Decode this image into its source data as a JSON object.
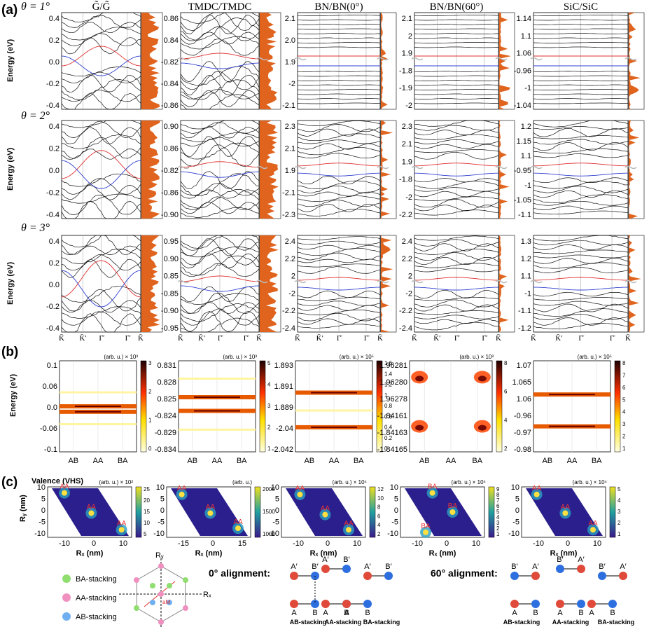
{
  "panel_labels": {
    "a": "(a)",
    "b": "(b)",
    "c": "(c)"
  },
  "columns": [
    "G̃/G̃",
    "TMDC/TMDC",
    "BN/BN(0°)",
    "BN/BN(60°)",
    "SiC/SiC"
  ],
  "thetas": [
    "θ = 1°",
    "θ = 2°",
    "θ = 3°"
  ],
  "energy_label": "Energy (eV)",
  "kpath": [
    "K̄",
    "K̄′",
    "Γ̄",
    "Γ̄",
    "K̄"
  ],
  "row_ticks": [
    [
      [
        "0.4",
        "0.2",
        "0.0",
        "-0.2",
        "-0.4"
      ],
      [
        "0.86",
        "0.84",
        "-0.82",
        "-0.84",
        "-0.86"
      ],
      [
        "2.1",
        "2.0",
        "1.9",
        "-2",
        "-2.1"
      ],
      [
        "2.1",
        "2",
        "1.9",
        "-1.8",
        "-1.9",
        "-2"
      ],
      [
        "1.14",
        "1.1",
        "1.06",
        "-0.96",
        "-1",
        "-1.04"
      ]
    ],
    [
      [
        "0.4",
        "0.2",
        "0.0",
        "-0.2",
        "-0.4"
      ],
      [
        "0.90",
        "0.86",
        "-0.82",
        "-0.86",
        "-0.90"
      ],
      [
        "2.3",
        "2.1",
        "1.9",
        "-2.1",
        "-2.3"
      ],
      [
        "2.3",
        "2.1",
        "1.9",
        "-1.8",
        "-2",
        "-2.2"
      ],
      [
        "1.2",
        "1.15",
        "1.1",
        "-0.95",
        "-1",
        "-1.05",
        "-1.1"
      ]
    ],
    [
      [
        "0.4",
        "0.2",
        "0.0",
        "-0.2",
        "-0.4"
      ],
      [
        "0.95",
        "0.90",
        "0.85",
        "-0.85",
        "-0.90",
        "-0.95"
      ],
      [
        "2.4",
        "2.2",
        "2",
        "-2",
        "-2.2",
        "-2.4"
      ],
      [
        "2.4",
        "2.2",
        "2",
        "-2",
        "-2.2",
        "-2.4"
      ],
      [
        "1.3",
        "1.2",
        "1.1",
        "-1",
        "-1.1",
        "-1.2"
      ]
    ]
  ],
  "panel_b": {
    "xticks": [
      "AB",
      "AA",
      "BA"
    ],
    "yticks": [
      [
        "0.1",
        "0.06",
        "0.0",
        "-0.06",
        "-0.1"
      ],
      [
        "0.831",
        "0.828",
        "0.825",
        "-0.824",
        "-0.829",
        "-0.834"
      ],
      [
        "1.893",
        "1.891",
        "1.889",
        "-2.04",
        "-2.042"
      ],
      [
        "1.96281",
        "1.96280",
        "1.96278",
        "-1.84161",
        "-1.84163",
        "-1.84165"
      ],
      [
        "1.07",
        "1.065",
        "1.06",
        "-0.96",
        "-0.97",
        "-0.98"
      ]
    ],
    "units": [
      "(arb. u.) × 10³",
      "(arb. u.) × 10³",
      "(arb. u.) × 10⁵",
      "(arb. u.) × 10³",
      "(arb. u.) × 10⁵"
    ],
    "cbar_ticks": [
      [
        "3",
        "2",
        "1",
        "0"
      ],
      [
        "5",
        "4",
        "3",
        "2",
        "1"
      ],
      [
        "1.6",
        "1.4",
        "1.2",
        "1",
        "0.8",
        "0.6",
        "0.4",
        "0.2",
        "0"
      ],
      [
        "8",
        "6",
        "4",
        "2"
      ],
      [
        "8",
        "7",
        "6",
        "5",
        "4",
        "3",
        "2",
        "1"
      ]
    ]
  },
  "panel_c": {
    "title": "Valence (VHS)",
    "ylabel": "Rᵧ (nm)",
    "xlabel": "Rₓ (nm)",
    "yticks": [
      "10",
      "5",
      "0",
      "-5",
      "-10"
    ],
    "xticks": [
      [
        "-10",
        "0",
        "10"
      ],
      [
        "-15",
        "0",
        "15"
      ],
      [
        "-10",
        "0",
        "10"
      ],
      [
        "-10",
        "0",
        "10"
      ],
      [
        "-10",
        "0",
        "10"
      ]
    ],
    "units": [
      "(arb. u.) × 10²",
      "(arb. u.)",
      "(arb. u.) × 10⁴",
      "(arb. u.) × 10⁴",
      "(arb. u.) × 10⁴"
    ],
    "cbar_ticks": [
      [
        "25",
        "20",
        "15",
        "10",
        "5"
      ],
      [
        "2000",
        "1500",
        "1000"
      ],
      [
        "12",
        "10",
        "8",
        "6",
        "4",
        "2"
      ],
      [
        "9",
        "8",
        "7",
        "6",
        "5",
        "4",
        "3",
        "2",
        "1"
      ],
      [
        "5",
        "4",
        "3",
        "2",
        "1"
      ]
    ],
    "spot_labels": [
      [
        "AA",
        "AA",
        "AA"
      ],
      [
        "AA",
        "AA",
        "AA"
      ],
      [
        "AA",
        "AA",
        "AA"
      ],
      [
        "BA",
        "BA",
        "BA"
      ],
      [
        "AA",
        "AA",
        "AA"
      ]
    ]
  },
  "legend": [
    "BA-stacking",
    "AA-stacking",
    "AB-stacking"
  ],
  "legend_colors": [
    "#90dd70",
    "#f090c0",
    "#70b0f0"
  ],
  "hex": {
    "ry": "Rᵧ",
    "rx": "Rₓ",
    "am": "aM"
  },
  "alignment": {
    "zero": "0° alignment:",
    "sixty": "60° alignment:",
    "zero_stacks": [
      "AB-stacking",
      "AA-stacking",
      "BA-stacking"
    ],
    "sixty_stacks": [
      "AB-stacking",
      "AA-stacking",
      "BA-stacking"
    ],
    "atoms": {
      "a": "A",
      "b": "B",
      "ap": "A′",
      "bp": "B′"
    }
  },
  "colors": {
    "red_band": "#e03030",
    "blue_band": "#3040d0",
    "dos": "#e0641e",
    "atom_red": "#e04a3a",
    "atom_blue": "#2e6fe0"
  }
}
